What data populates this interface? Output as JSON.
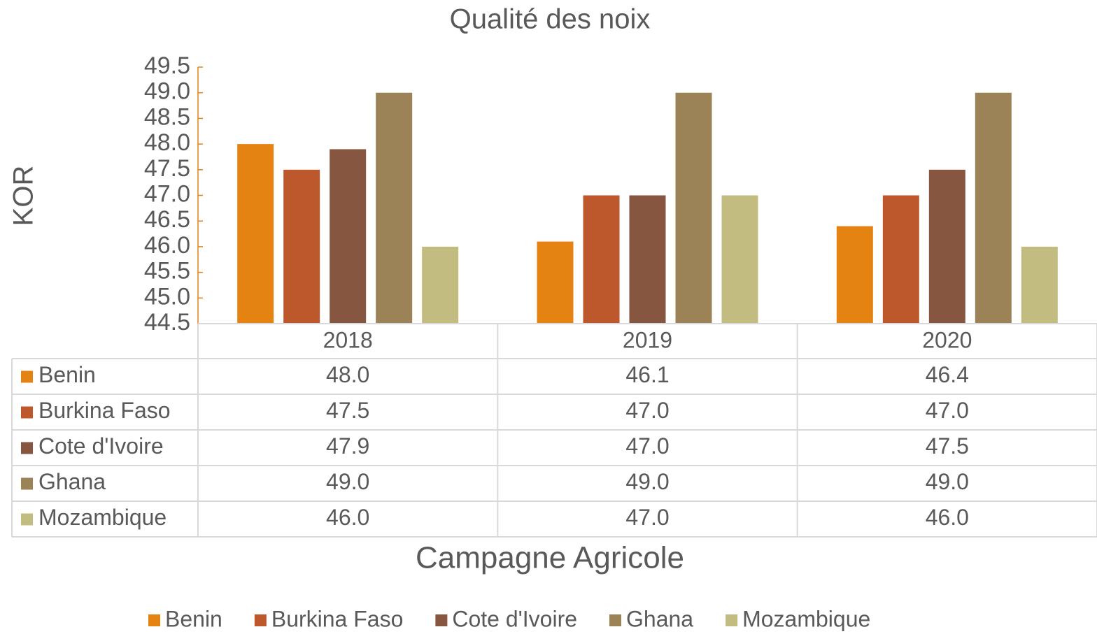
{
  "chart_data": {
    "type": "bar",
    "title": "Qualité des noix",
    "x_label": "Campagne Agricole",
    "y_label": "KOR",
    "categories": [
      "2018",
      "2019",
      "2020"
    ],
    "series": [
      {
        "name": "Benin",
        "color": "#e48312",
        "values": [
          48.0,
          46.1,
          46.4
        ],
        "value_labels": [
          "48.0",
          "46.1",
          "46.4"
        ]
      },
      {
        "name": "Burkina Faso",
        "color": "#bd582c",
        "values": [
          47.5,
          47.0,
          47.0
        ],
        "value_labels": [
          "47.5",
          "47.0",
          "47.0"
        ]
      },
      {
        "name": "Cote d'Ivoire",
        "color": "#865640",
        "values": [
          47.9,
          47.0,
          47.5
        ],
        "value_labels": [
          "47.9",
          "47.0",
          "47.5"
        ]
      },
      {
        "name": "Ghana",
        "color": "#9b8357",
        "values": [
          49.0,
          49.0,
          49.0
        ],
        "value_labels": [
          "49.0",
          "49.0",
          "49.0"
        ]
      },
      {
        "name": "Mozambique",
        "color": "#c2bc80",
        "values": [
          46.0,
          47.0,
          46.0
        ],
        "value_labels": [
          "46.0",
          "47.0",
          "46.0"
        ]
      }
    ],
    "ylim": [
      44.5,
      49.5
    ],
    "yticks": [
      44.5,
      {
        "value": 45,
        "label": "45.0"
      },
      45.5,
      {
        "value": 46,
        "label": "46.0"
      },
      46.5,
      {
        "value": 47,
        "label": "47.0"
      },
      47.5,
      {
        "value": 48,
        "label": "48.0"
      },
      48.5,
      {
        "value": 49,
        "label": "49.0"
      },
      49.5
    ],
    "legend": "bottom"
  }
}
